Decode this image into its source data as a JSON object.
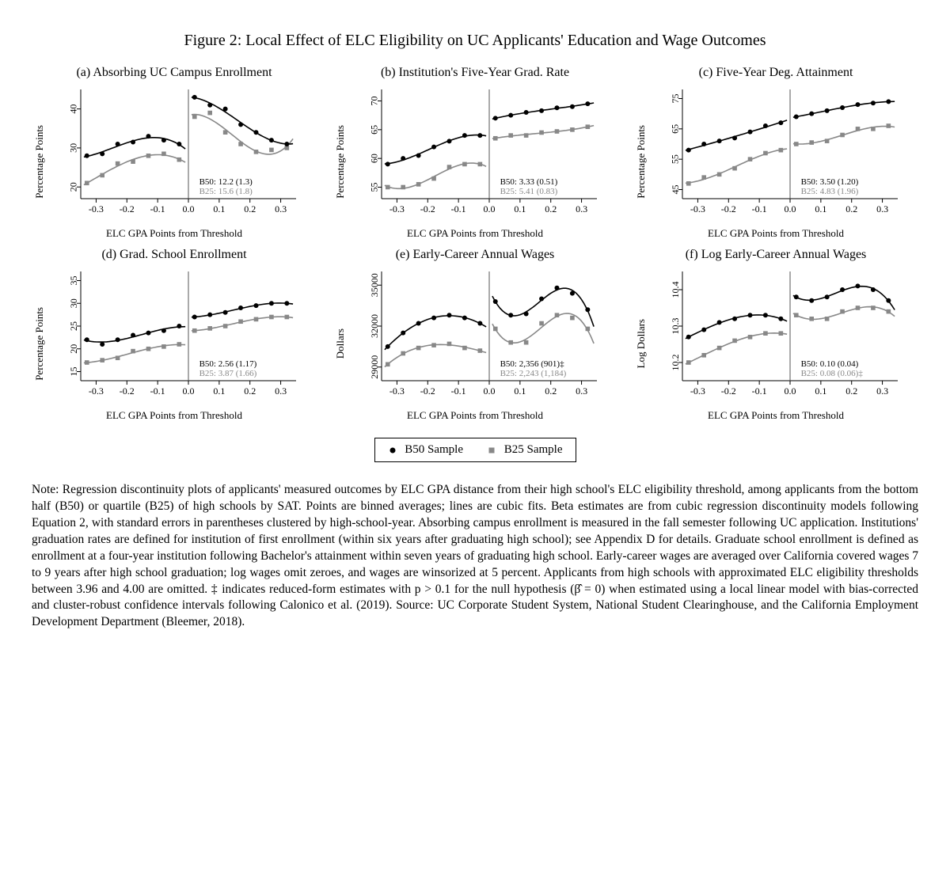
{
  "title": "Figure 2: Local Effect of ELC Eligibility on UC Applicants' Education and Wage Outcomes",
  "xLabel": "ELC GPA Points from Threshold",
  "legend": {
    "b50": "B50 Sample",
    "b25": "B25 Sample"
  },
  "colors": {
    "b50_point": "#000000",
    "b50_line": "#000000",
    "b25_point": "#888888",
    "b25_line": "#888888",
    "axis": "#000000",
    "threshold": "#555555"
  },
  "xAxis": {
    "min": -0.35,
    "max": 0.35,
    "ticks": [
      -0.3,
      -0.2,
      -0.1,
      0.0,
      0.1,
      0.2,
      0.3
    ]
  },
  "panels": [
    {
      "key": "a",
      "title": "(a) Absorbing UC Campus Enrollment",
      "ylab": "Percentage Points",
      "y": {
        "min": 17,
        "max": 45,
        "ticks": [
          20,
          30,
          40
        ]
      },
      "annot": [
        "B50: 12.2 (1.3)",
        "B25: 15.6 (1.8)"
      ],
      "b50_left": [
        [
          -0.33,
          28
        ],
        [
          -0.28,
          28.5
        ],
        [
          -0.23,
          31
        ],
        [
          -0.18,
          31.5
        ],
        [
          -0.13,
          33
        ],
        [
          -0.08,
          32
        ],
        [
          -0.03,
          31
        ]
      ],
      "b50_right": [
        [
          0.02,
          43
        ],
        [
          0.07,
          41
        ],
        [
          0.12,
          40
        ],
        [
          0.17,
          36
        ],
        [
          0.22,
          34
        ],
        [
          0.27,
          32
        ],
        [
          0.32,
          31
        ]
      ],
      "b25_left": [
        [
          -0.33,
          21
        ],
        [
          -0.28,
          23
        ],
        [
          -0.23,
          26
        ],
        [
          -0.18,
          26.5
        ],
        [
          -0.13,
          28
        ],
        [
          -0.08,
          28.5
        ],
        [
          -0.03,
          27
        ]
      ],
      "b25_right": [
        [
          0.02,
          38
        ],
        [
          0.07,
          39
        ],
        [
          0.12,
          34
        ],
        [
          0.17,
          31
        ],
        [
          0.22,
          29
        ],
        [
          0.27,
          29.5
        ],
        [
          0.32,
          30
        ]
      ]
    },
    {
      "key": "b",
      "title": "(b) Institution's Five-Year Grad. Rate",
      "ylab": "Percentage Points",
      "y": {
        "min": 53,
        "max": 72,
        "ticks": [
          55,
          60,
          65,
          70
        ]
      },
      "annot": [
        "B50: 3.33 (0.51)",
        "B25: 5.41 (0.83)"
      ],
      "b50_left": [
        [
          -0.33,
          59
        ],
        [
          -0.28,
          60
        ],
        [
          -0.23,
          60.5
        ],
        [
          -0.18,
          62
        ],
        [
          -0.13,
          63
        ],
        [
          -0.08,
          64
        ],
        [
          -0.03,
          64
        ]
      ],
      "b50_right": [
        [
          0.02,
          67
        ],
        [
          0.07,
          67.5
        ],
        [
          0.12,
          68
        ],
        [
          0.17,
          68.3
        ],
        [
          0.22,
          68.8
        ],
        [
          0.27,
          69
        ],
        [
          0.32,
          69.5
        ]
      ],
      "b25_left": [
        [
          -0.33,
          55
        ],
        [
          -0.28,
          55
        ],
        [
          -0.23,
          55.5
        ],
        [
          -0.18,
          56.5
        ],
        [
          -0.13,
          58.5
        ],
        [
          -0.08,
          59
        ],
        [
          -0.03,
          59
        ]
      ],
      "b25_right": [
        [
          0.02,
          63.5
        ],
        [
          0.07,
          64
        ],
        [
          0.12,
          64
        ],
        [
          0.17,
          64.5
        ],
        [
          0.22,
          64.7
        ],
        [
          0.27,
          65
        ],
        [
          0.32,
          65.5
        ]
      ]
    },
    {
      "key": "c",
      "title": "(c) Five-Year Deg. Attainment",
      "ylab": "Percentage Points",
      "y": {
        "min": 42,
        "max": 78,
        "ticks": [
          45,
          55,
          65,
          75
        ]
      },
      "annot": [
        "B50: 3.50 (1.20)",
        "B25: 4.83 (1.96)"
      ],
      "b50_left": [
        [
          -0.33,
          58
        ],
        [
          -0.28,
          60
        ],
        [
          -0.23,
          61
        ],
        [
          -0.18,
          62
        ],
        [
          -0.13,
          64
        ],
        [
          -0.08,
          66
        ],
        [
          -0.03,
          67
        ]
      ],
      "b50_right": [
        [
          0.02,
          69
        ],
        [
          0.07,
          70
        ],
        [
          0.12,
          71
        ],
        [
          0.17,
          72
        ],
        [
          0.22,
          73
        ],
        [
          0.27,
          73.5
        ],
        [
          0.32,
          74
        ]
      ],
      "b25_left": [
        [
          -0.33,
          47
        ],
        [
          -0.28,
          49
        ],
        [
          -0.23,
          50
        ],
        [
          -0.18,
          52
        ],
        [
          -0.13,
          55
        ],
        [
          -0.08,
          57
        ],
        [
          -0.03,
          58
        ]
      ],
      "b25_right": [
        [
          0.02,
          60
        ],
        [
          0.07,
          60.5
        ],
        [
          0.12,
          61
        ],
        [
          0.17,
          63
        ],
        [
          0.22,
          65
        ],
        [
          0.27,
          65
        ],
        [
          0.32,
          66
        ]
      ]
    },
    {
      "key": "d",
      "title": "(d) Grad. School Enrollment",
      "ylab": "Percentage Points",
      "y": {
        "min": 13,
        "max": 37,
        "ticks": [
          15,
          20,
          25,
          30,
          35
        ]
      },
      "annot": [
        "B50: 2.56 (1.17)",
        "B25: 3.87 (1.66)"
      ],
      "b50_left": [
        [
          -0.33,
          22
        ],
        [
          -0.28,
          21
        ],
        [
          -0.23,
          22
        ],
        [
          -0.18,
          23
        ],
        [
          -0.13,
          23.5
        ],
        [
          -0.08,
          24
        ],
        [
          -0.03,
          25
        ]
      ],
      "b50_right": [
        [
          0.02,
          27
        ],
        [
          0.07,
          27.5
        ],
        [
          0.12,
          28
        ],
        [
          0.17,
          29
        ],
        [
          0.22,
          29.5
        ],
        [
          0.27,
          30
        ],
        [
          0.32,
          30
        ]
      ],
      "b25_left": [
        [
          -0.33,
          17
        ],
        [
          -0.28,
          17.5
        ],
        [
          -0.23,
          18
        ],
        [
          -0.18,
          19.5
        ],
        [
          -0.13,
          20
        ],
        [
          -0.08,
          20.5
        ],
        [
          -0.03,
          21
        ]
      ],
      "b25_right": [
        [
          0.02,
          24
        ],
        [
          0.07,
          24.5
        ],
        [
          0.12,
          25
        ],
        [
          0.17,
          26
        ],
        [
          0.22,
          26.5
        ],
        [
          0.27,
          27
        ],
        [
          0.32,
          27
        ]
      ],
      "rowStart": true
    },
    {
      "key": "e",
      "title": "(e) Early-Career Annual Wages",
      "ylab": "Dollars",
      "y": {
        "min": 28000,
        "max": 36000,
        "ticks": [
          29000,
          32000,
          35000
        ]
      },
      "annot": [
        "B50: 2,356 (901)‡",
        "B25: 2,243 (1,184)"
      ],
      "b50_left": [
        [
          -0.33,
          30500
        ],
        [
          -0.28,
          31500
        ],
        [
          -0.23,
          32200
        ],
        [
          -0.18,
          32600
        ],
        [
          -0.13,
          32800
        ],
        [
          -0.08,
          32600
        ],
        [
          -0.03,
          32200
        ]
      ],
      "b50_right": [
        [
          0.02,
          33800
        ],
        [
          0.07,
          32800
        ],
        [
          0.12,
          32900
        ],
        [
          0.17,
          34000
        ],
        [
          0.22,
          34800
        ],
        [
          0.27,
          34400
        ],
        [
          0.32,
          33200
        ]
      ],
      "b25_left": [
        [
          -0.33,
          29200
        ],
        [
          -0.28,
          30000
        ],
        [
          -0.23,
          30400
        ],
        [
          -0.18,
          30600
        ],
        [
          -0.13,
          30700
        ],
        [
          -0.08,
          30400
        ],
        [
          -0.03,
          30200
        ]
      ],
      "b25_right": [
        [
          0.02,
          31800
        ],
        [
          0.07,
          30800
        ],
        [
          0.12,
          30800
        ],
        [
          0.17,
          32200
        ],
        [
          0.22,
          32800
        ],
        [
          0.27,
          32600
        ],
        [
          0.32,
          31800
        ]
      ]
    },
    {
      "key": "f",
      "title": "(f) Log Early-Career Annual Wages",
      "ylab": "Log Dollars",
      "y": {
        "min": 10.15,
        "max": 10.45,
        "ticks": [
          10.2,
          10.3,
          10.4
        ]
      },
      "annot": [
        "B50: 0.10 (0.04)",
        "B25: 0.08 (0.06)‡"
      ],
      "b50_left": [
        [
          -0.33,
          10.27
        ],
        [
          -0.28,
          10.29
        ],
        [
          -0.23,
          10.31
        ],
        [
          -0.18,
          10.32
        ],
        [
          -0.13,
          10.33
        ],
        [
          -0.08,
          10.33
        ],
        [
          -0.03,
          10.32
        ]
      ],
      "b50_right": [
        [
          0.02,
          10.38
        ],
        [
          0.07,
          10.37
        ],
        [
          0.12,
          10.38
        ],
        [
          0.17,
          10.4
        ],
        [
          0.22,
          10.41
        ],
        [
          0.27,
          10.4
        ],
        [
          0.32,
          10.37
        ]
      ],
      "b25_left": [
        [
          -0.33,
          10.2
        ],
        [
          -0.28,
          10.22
        ],
        [
          -0.23,
          10.24
        ],
        [
          -0.18,
          10.26
        ],
        [
          -0.13,
          10.27
        ],
        [
          -0.08,
          10.28
        ],
        [
          -0.03,
          10.28
        ]
      ],
      "b25_right": [
        [
          0.02,
          10.33
        ],
        [
          0.07,
          10.32
        ],
        [
          0.12,
          10.32
        ],
        [
          0.17,
          10.34
        ],
        [
          0.22,
          10.35
        ],
        [
          0.27,
          10.35
        ],
        [
          0.32,
          10.34
        ]
      ]
    }
  ],
  "note": "Note: Regression discontinuity plots of applicants' measured outcomes by ELC GPA distance from their high school's ELC eligibility threshold, among applicants from the bottom half (B50) or quartile (B25) of high schools by SAT. Points are binned averages; lines are cubic fits. Beta estimates are from cubic regression discontinuity models following Equation 2, with standard errors in parentheses clustered by high-school-year. Absorbing campus enrollment is measured in the fall semester following UC application. Institutions' graduation rates are defined for institution of first enrollment (within six years after graduating high school); see Appendix D for details. Graduate school enrollment is defined as enrollment at a four-year institution following Bachelor's attainment within seven years of graduating high school. Early-career wages are averaged over California covered wages 7 to 9 years after high school graduation; log wages omit zeroes, and wages are winsorized at 5 percent. Applicants from high schools with approximated ELC eligibility thresholds between 3.96 and 4.00 are omitted. ‡ indicates reduced-form estimates with p > 0.1 for the null hypothesis (β̂ = 0) when estimated using a local linear model with bias-corrected and cluster-robust confidence intervals following Calonico et al. (2019). Source: UC Corporate Student System, National Student Clearinghouse, and the California Employment Development Department (Bleemer, 2018)."
}
